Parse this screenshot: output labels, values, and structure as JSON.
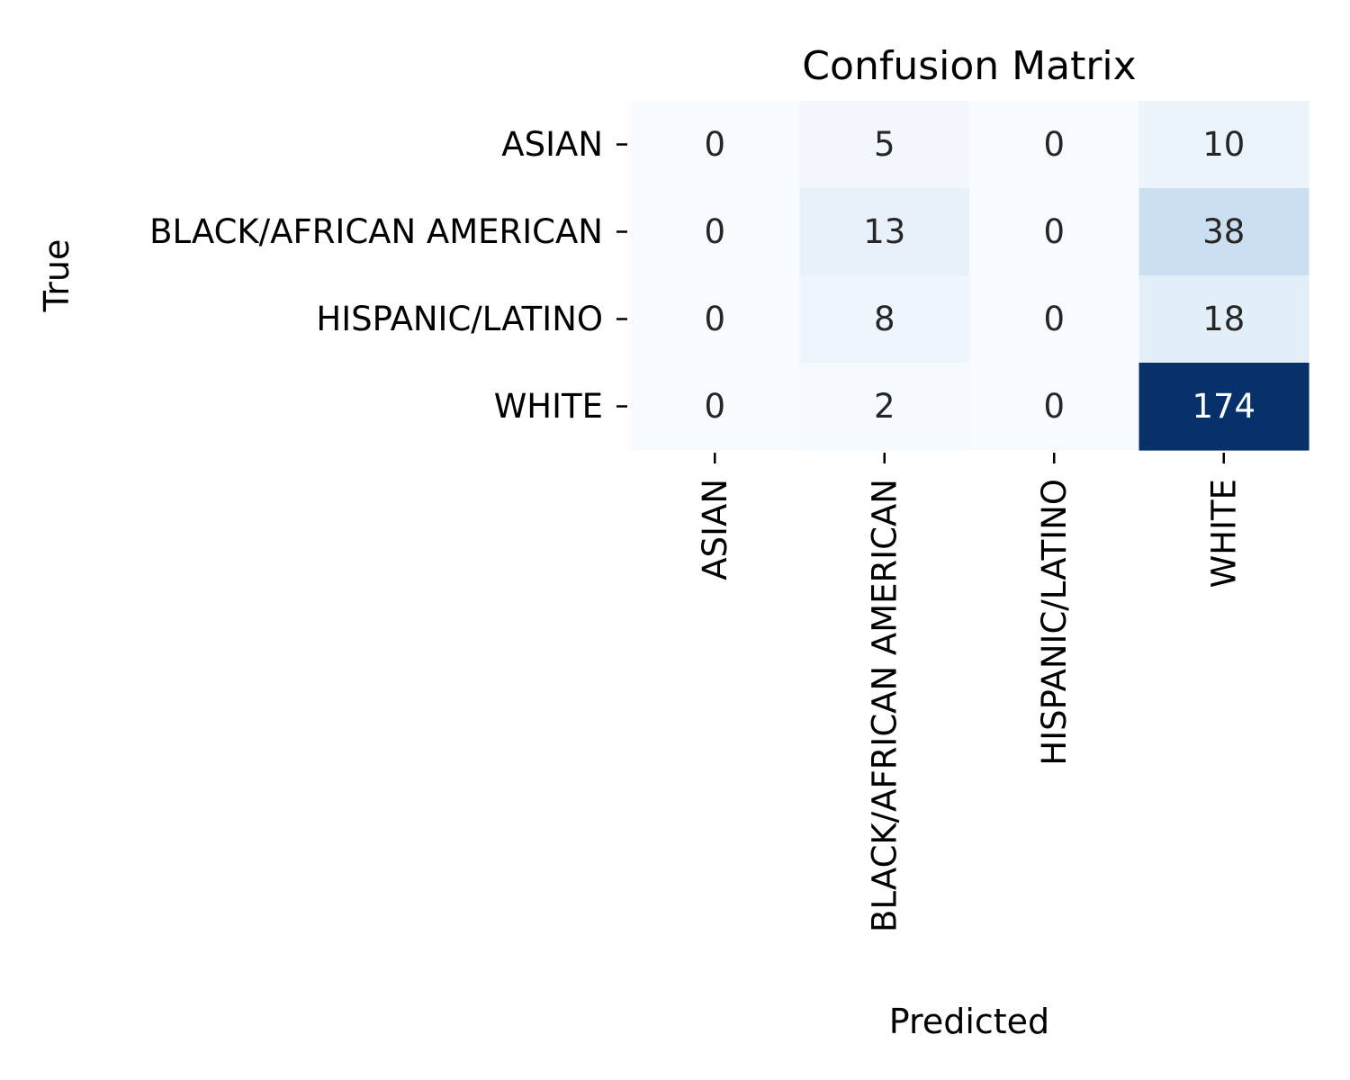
{
  "chart_data": {
    "type": "heatmap",
    "title": "Confusion Matrix",
    "xlabel": "Predicted",
    "ylabel": "True",
    "x_categories": [
      "ASIAN",
      "BLACK/AFRICAN AMERICAN",
      "HISPANIC/LATINO",
      "WHITE"
    ],
    "y_categories": [
      "ASIAN",
      "BLACK/AFRICAN AMERICAN",
      "HISPANIC/LATINO",
      "WHITE"
    ],
    "matrix": [
      [
        0,
        5,
        0,
        10
      ],
      [
        0,
        13,
        0,
        38
      ],
      [
        0,
        8,
        0,
        18
      ],
      [
        0,
        2,
        0,
        174
      ]
    ],
    "colormap": "Blues",
    "value_range": [
      0,
      174
    ],
    "colorbar": false,
    "grid": false
  }
}
